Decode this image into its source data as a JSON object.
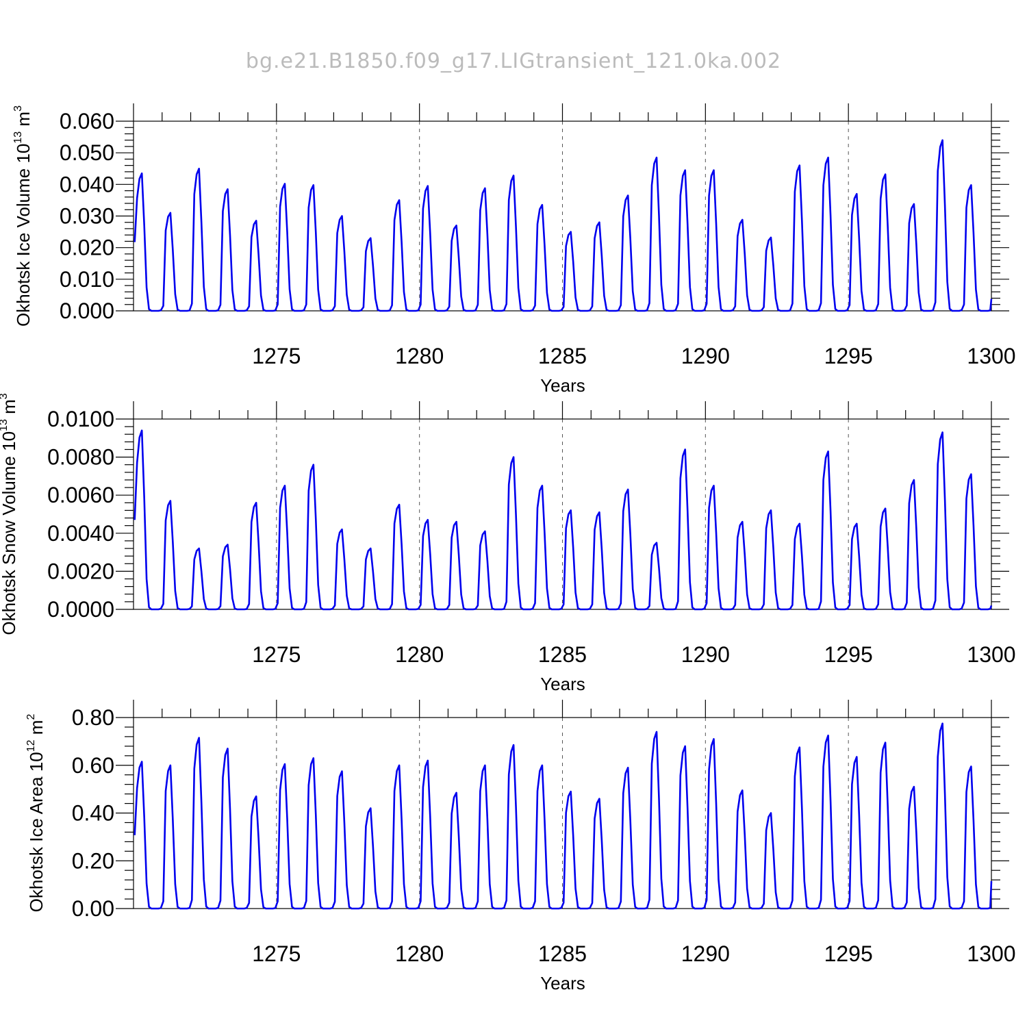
{
  "title": "bg.e21.B1850.f09_g17.LIGtransient_121.0ka.002",
  "chart_data": [
    {
      "type": "line",
      "ylabel": {
        "main": "Okhotsk Ice Volume 10",
        "exp": "13",
        "unit": " m",
        "unit_exp": "3"
      },
      "xlabel": "Years",
      "xlim": [
        1270,
        1300
      ],
      "ylim": [
        0,
        0.06
      ],
      "yticks": [
        "0.000",
        "0.010",
        "0.020",
        "0.030",
        "0.040",
        "0.050",
        "0.060"
      ],
      "xticks": [
        "1275",
        "1280",
        "1285",
        "1290",
        "1295",
        "1300"
      ],
      "grid_x": [
        1275,
        1280,
        1285,
        1290,
        1295
      ],
      "series": [
        {
          "color": "#0000ee",
          "start_year": 1270,
          "peaks": [
            0.0435,
            0.031,
            0.045,
            0.0385,
            0.0285,
            0.0402,
            0.0398,
            0.03,
            0.023,
            0.035,
            0.0395,
            0.027,
            0.0388,
            0.0428,
            0.0335,
            0.025,
            0.028,
            0.0365,
            0.0485,
            0.0445,
            0.0445,
            0.0288,
            0.0232,
            0.046,
            0.0485,
            0.037,
            0.0432,
            0.0338,
            0.054,
            0.0398
          ],
          "end_value": 0.0038
        }
      ]
    },
    {
      "type": "line",
      "ylabel": {
        "main": "Okhotsk Snow Volume 10",
        "exp": "13",
        "unit": " m",
        "unit_exp": "3"
      },
      "xlabel": "Years",
      "xlim": [
        1270,
        1300
      ],
      "ylim": [
        0,
        0.01
      ],
      "yticks": [
        "0.0000",
        "0.0020",
        "0.0040",
        "0.0060",
        "0.0080",
        "0.0100"
      ],
      "xticks": [
        "1275",
        "1280",
        "1285",
        "1290",
        "1295",
        "1300"
      ],
      "grid_x": [
        1275,
        1280,
        1285,
        1290,
        1295
      ],
      "series": [
        {
          "color": "#0000ee",
          "start_year": 1270,
          "peaks": [
            0.0094,
            0.0057,
            0.0032,
            0.0034,
            0.0056,
            0.0065,
            0.0076,
            0.0042,
            0.0032,
            0.0055,
            0.0047,
            0.0046,
            0.0041,
            0.008,
            0.0065,
            0.0052,
            0.0051,
            0.0063,
            0.0035,
            0.0084,
            0.0065,
            0.0046,
            0.0052,
            0.0045,
            0.0083,
            0.0045,
            0.0053,
            0.0068,
            0.0093,
            0.0071
          ],
          "end_value": 0.0002
        }
      ]
    },
    {
      "type": "line",
      "ylabel": {
        "main": "Okhotsk Ice Area 10",
        "exp": "12",
        "unit": " m",
        "unit_exp": "2"
      },
      "xlabel": "Years",
      "xlim": [
        1270,
        1300
      ],
      "ylim": [
        0,
        0.8
      ],
      "yticks": [
        "0.00",
        "0.20",
        "0.40",
        "0.60",
        "0.80"
      ],
      "xticks": [
        "1275",
        "1280",
        "1285",
        "1290",
        "1295",
        "1300"
      ],
      "grid_x": [
        1275,
        1280,
        1285,
        1290,
        1295
      ],
      "series": [
        {
          "color": "#0000ee",
          "start_year": 1270,
          "peaks": [
            0.615,
            0.6,
            0.715,
            0.67,
            0.47,
            0.605,
            0.63,
            0.575,
            0.42,
            0.6,
            0.62,
            0.485,
            0.6,
            0.685,
            0.6,
            0.49,
            0.46,
            0.59,
            0.74,
            0.68,
            0.71,
            0.495,
            0.4,
            0.675,
            0.725,
            0.635,
            0.695,
            0.51,
            0.775,
            0.595
          ],
          "end_value": 0.115
        }
      ]
    }
  ]
}
